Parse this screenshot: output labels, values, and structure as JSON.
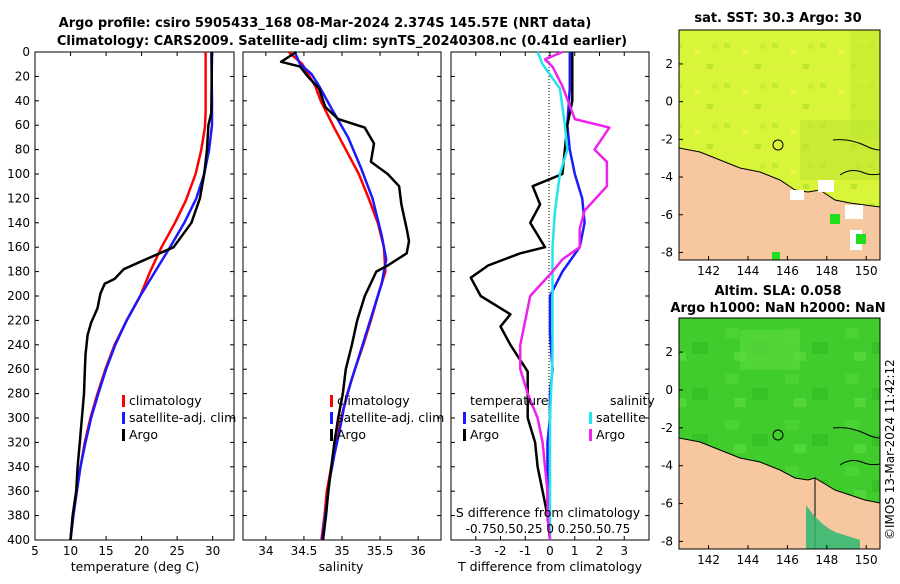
{
  "titles": {
    "line1": "Argo profile: csiro 5905433_168 08-Mar-2024 2.374S 145.57E (NRT data)",
    "line2": "Climatology: CARS2009. Satellite-adj clim: synTS_20240308.nc (0.41d earlier)"
  },
  "watermark": "©IMOS 13-Mar-2024 11:42:12",
  "colors": {
    "climatology": "#ff0000",
    "satellite": "#1a1aff",
    "argo": "#000000",
    "satellite_s": "#22e5ee",
    "argo_s": "#ee22ee",
    "land": "#f7c79f"
  },
  "depth_axis": {
    "ylim": [
      0,
      400
    ],
    "ticks": [
      "0",
      "20",
      "40",
      "60",
      "80",
      "100",
      "120",
      "140",
      "160",
      "180",
      "200",
      "220",
      "240",
      "260",
      "280",
      "300",
      "320",
      "340",
      "360",
      "380",
      "400"
    ]
  },
  "chart_data": [
    {
      "type": "line",
      "id": "temperature",
      "xlabel": "temperature (deg C)",
      "xlim": [
        5,
        33
      ],
      "xticks": [
        "5",
        "10",
        "15",
        "20",
        "25",
        "30"
      ],
      "legend": [
        "climatology",
        "satellite-adj. clim",
        "Argo"
      ],
      "series": [
        {
          "name": "climatology",
          "color": "#ff0000",
          "points": [
            [
              29,
              0
            ],
            [
              29,
              50
            ],
            [
              28.9,
              62
            ],
            [
              28.4,
              80
            ],
            [
              27.6,
              100
            ],
            [
              26.2,
              122
            ],
            [
              24.7,
              140
            ],
            [
              22.8,
              160
            ],
            [
              21.2,
              180
            ],
            [
              19.8,
              200
            ],
            [
              17.9,
              220
            ],
            [
              16.2,
              240
            ],
            [
              14.9,
              260
            ],
            [
              13.8,
              280
            ],
            [
              12.8,
              300
            ],
            [
              12,
              320
            ],
            [
              11.4,
              340
            ],
            [
              10.8,
              360
            ],
            [
              10.3,
              380
            ],
            [
              10,
              400
            ]
          ]
        },
        {
          "name": "satellite-adj. clim",
          "color": "#1a1aff",
          "points": [
            [
              29.8,
              0
            ],
            [
              29.9,
              40
            ],
            [
              29.9,
              60
            ],
            [
              29.5,
              80
            ],
            [
              28.8,
              100
            ],
            [
              27.7,
              120
            ],
            [
              26,
              140
            ],
            [
              24,
              160
            ],
            [
              21.9,
              180
            ],
            [
              19.8,
              200
            ],
            [
              17.9,
              220
            ],
            [
              16.3,
              240
            ],
            [
              15,
              260
            ],
            [
              13.9,
              280
            ],
            [
              12.9,
              300
            ],
            [
              12.1,
              320
            ],
            [
              11.4,
              340
            ],
            [
              10.9,
              360
            ],
            [
              10.4,
              380
            ],
            [
              10,
              400
            ]
          ]
        },
        {
          "name": "Argo",
          "color": "#000000",
          "points": [
            [
              29.9,
              0
            ],
            [
              29.8,
              50
            ],
            [
              29.4,
              60
            ],
            [
              29.2,
              80
            ],
            [
              28.8,
              100
            ],
            [
              28.2,
              120
            ],
            [
              27,
              140
            ],
            [
              24.5,
              160
            ],
            [
              19.8,
              172
            ],
            [
              17.5,
              178
            ],
            [
              16.2,
              186
            ],
            [
              14.8,
              190
            ],
            [
              14.2,
              198
            ],
            [
              13.8,
              210
            ],
            [
              12.9,
              222
            ],
            [
              12.4,
              232
            ],
            [
              12.1,
              248
            ],
            [
              12,
              262
            ],
            [
              11.9,
              280
            ],
            [
              11.6,
              300
            ],
            [
              11.3,
              320
            ],
            [
              11,
              340
            ],
            [
              10.8,
              360
            ],
            [
              10.3,
              380
            ],
            [
              10,
              400
            ]
          ]
        }
      ]
    },
    {
      "type": "line",
      "id": "salinity",
      "xlabel": "salinity",
      "xlim": [
        33.7,
        36.3
      ],
      "xticks": [
        "34",
        "34.5",
        "35",
        "35.5",
        "36"
      ],
      "legend": [
        "climatology",
        "satellite-adj. clim",
        "Argo"
      ],
      "series": [
        {
          "name": "climatology",
          "color": "#ff0000",
          "points": [
            [
              34.3,
              0
            ],
            [
              34.48,
              10
            ],
            [
              34.65,
              28
            ],
            [
              34.72,
              40
            ],
            [
              34.88,
              60
            ],
            [
              35.05,
              80
            ],
            [
              35.22,
              100
            ],
            [
              35.35,
              120
            ],
            [
              35.47,
              140
            ],
            [
              35.55,
              160
            ],
            [
              35.57,
              180
            ],
            [
              35.47,
              200
            ],
            [
              35.38,
              220
            ],
            [
              35.28,
              240
            ],
            [
              35.17,
              260
            ],
            [
              35.07,
              280
            ],
            [
              34.99,
              300
            ],
            [
              34.92,
              320
            ],
            [
              34.86,
              340
            ],
            [
              34.8,
              360
            ],
            [
              34.77,
              380
            ],
            [
              34.73,
              400
            ]
          ]
        },
        {
          "name": "satellite-adj. clim",
          "color": "#1a1aff",
          "points": [
            [
              34.38,
              0
            ],
            [
              34.45,
              10
            ],
            [
              34.6,
              18
            ],
            [
              34.7,
              28
            ],
            [
              34.85,
              45
            ],
            [
              35.08,
              70
            ],
            [
              35.25,
              95
            ],
            [
              35.4,
              120
            ],
            [
              35.52,
              150
            ],
            [
              35.58,
              170
            ],
            [
              35.52,
              190
            ],
            [
              35.42,
              210
            ],
            [
              35.32,
              230
            ],
            [
              35.22,
              250
            ],
            [
              35.12,
              270
            ],
            [
              35.03,
              290
            ],
            [
              34.97,
              310
            ],
            [
              34.9,
              330
            ],
            [
              34.84,
              350
            ],
            [
              34.8,
              370
            ],
            [
              34.76,
              390
            ],
            [
              34.74,
              400
            ]
          ]
        },
        {
          "name": "Argo",
          "color": "#000000",
          "points": [
            [
              34.4,
              0
            ],
            [
              34.2,
              8
            ],
            [
              34.45,
              12
            ],
            [
              34.55,
              20
            ],
            [
              34.7,
              30
            ],
            [
              34.78,
              45
            ],
            [
              34.95,
              55
            ],
            [
              35.3,
              62
            ],
            [
              35.42,
              75
            ],
            [
              35.38,
              90
            ],
            [
              35.6,
              100
            ],
            [
              35.75,
              110
            ],
            [
              35.78,
              125
            ],
            [
              35.85,
              145
            ],
            [
              35.88,
              155
            ],
            [
              35.85,
              165
            ],
            [
              35.6,
              175
            ],
            [
              35.45,
              180
            ],
            [
              35.3,
              200
            ],
            [
              35.2,
              220
            ],
            [
              35.13,
              240
            ],
            [
              35.05,
              260
            ],
            [
              35.01,
              280
            ],
            [
              34.95,
              300
            ],
            [
              34.9,
              320
            ],
            [
              34.86,
              340
            ],
            [
              34.82,
              360
            ],
            [
              34.79,
              380
            ],
            [
              34.75,
              400
            ]
          ]
        }
      ]
    },
    {
      "type": "line",
      "id": "differences",
      "xlabel": "T difference from climatology",
      "xlim": [
        -4,
        4
      ],
      "xticks": [
        "-3",
        "-2",
        "-1",
        "0",
        "1",
        "2",
        "3"
      ],
      "top_xlabel": "S difference from climatology",
      "top_xticks": [
        "-0.75",
        "-0.5",
        "-0.25",
        "0",
        "0.25",
        "0.5",
        "0.75"
      ],
      "top_xticks_text": "-0.750.50.25  0  0.250.50.75",
      "legend_t_title": "temperature",
      "legend_s_title": "salinity",
      "legend_t": [
        "satellite",
        "Argo"
      ],
      "legend_s": [
        "satellite",
        "Argo"
      ],
      "series": [
        {
          "name": "T satellite",
          "color": "#1a1aff",
          "points": [
            [
              0.8,
              0
            ],
            [
              0.8,
              30
            ],
            [
              0.7,
              60
            ],
            [
              0.8,
              80
            ],
            [
              1,
              100
            ],
            [
              1.3,
              120
            ],
            [
              1.4,
              140
            ],
            [
              1.2,
              160
            ],
            [
              0.5,
              180
            ],
            [
              0,
              200
            ],
            [
              0,
              230
            ],
            [
              0.1,
              260
            ],
            [
              0,
              280
            ],
            [
              0,
              300
            ],
            [
              -0.1,
              320
            ],
            [
              -0.1,
              340
            ],
            [
              -0.1,
              360
            ],
            [
              -0.1,
              380
            ],
            [
              0,
              400
            ]
          ]
        },
        {
          "name": "T Argo",
          "color": "#000000",
          "points": [
            [
              0.9,
              0
            ],
            [
              0.9,
              40
            ],
            [
              0.7,
              60
            ],
            [
              0.6,
              80
            ],
            [
              0.5,
              100
            ],
            [
              -0.7,
              110
            ],
            [
              -0.4,
              125
            ],
            [
              -0.8,
              140
            ],
            [
              -0.5,
              150
            ],
            [
              -0.2,
              160
            ],
            [
              -1.2,
              165
            ],
            [
              -2.5,
              175
            ],
            [
              -3.2,
              185
            ],
            [
              -2.8,
              200
            ],
            [
              -1.6,
              215
            ],
            [
              -2,
              225
            ],
            [
              -1.6,
              240
            ],
            [
              -0.9,
              262
            ],
            [
              -0.9,
              280
            ],
            [
              -0.9,
              300
            ],
            [
              -0.6,
              320
            ],
            [
              -0.5,
              340
            ],
            [
              -0.3,
              360
            ],
            [
              -0.1,
              380
            ],
            [
              0,
              400
            ]
          ]
        },
        {
          "name": "S satellite",
          "color": "#22e5ee",
          "points": [
            [
              -0.5,
              0
            ],
            [
              -0.3,
              10
            ],
            [
              0.4,
              30
            ],
            [
              0.6,
              60
            ],
            [
              0.7,
              80
            ],
            [
              0.4,
              100
            ],
            [
              0.2,
              130
            ],
            [
              0.1,
              160
            ],
            [
              0.1,
              200
            ],
            [
              0.1,
              250
            ],
            [
              0,
              300
            ],
            [
              0,
              400
            ]
          ]
        },
        {
          "name": "S Argo",
          "color": "#ee22ee",
          "points": [
            [
              0.5,
              0
            ],
            [
              -0.2,
              6
            ],
            [
              0.1,
              12
            ],
            [
              0.5,
              28
            ],
            [
              1,
              55
            ],
            [
              2.4,
              62
            ],
            [
              1.8,
              80
            ],
            [
              2.3,
              90
            ],
            [
              2.3,
              110
            ],
            [
              1.4,
              130
            ],
            [
              1.2,
              145
            ],
            [
              1.2,
              160
            ],
            [
              0.5,
              170
            ],
            [
              0.1,
              180
            ],
            [
              -0.8,
              200
            ],
            [
              -1,
              220
            ],
            [
              -1.2,
              240
            ],
            [
              -1.2,
              260
            ],
            [
              -0.9,
              280
            ],
            [
              -0.5,
              300
            ],
            [
              -0.3,
              320
            ],
            [
              -0.2,
              340
            ],
            [
              -0.1,
              360
            ],
            [
              -0.1,
              380
            ],
            [
              0,
              400
            ]
          ]
        }
      ]
    },
    {
      "type": "heatmap",
      "id": "sst-map",
      "title": "sat. SST: 30.3 Argo: 30",
      "xticks": [
        "142",
        "144",
        "146",
        "148",
        "150"
      ],
      "yticks": [
        "2",
        "0",
        "-2",
        "-4",
        "-6",
        "-8"
      ],
      "xlim": [
        140.5,
        150.7
      ],
      "ylim": [
        -8.4,
        3.8
      ],
      "argo_position": [
        145.57,
        -2.374
      ]
    },
    {
      "type": "heatmap",
      "id": "sla-map",
      "title_line1": "Altim. SLA: 0.058",
      "title_line2": "Argo h1000: NaN h2000: NaN",
      "xticks": [
        "142",
        "144",
        "146",
        "148",
        "150"
      ],
      "yticks": [
        "2",
        "0",
        "-2",
        "-4",
        "-6",
        "-8"
      ],
      "xlim": [
        140.5,
        150.7
      ],
      "ylim": [
        -8.4,
        3.8
      ],
      "argo_position": [
        145.57,
        -2.374
      ]
    }
  ]
}
